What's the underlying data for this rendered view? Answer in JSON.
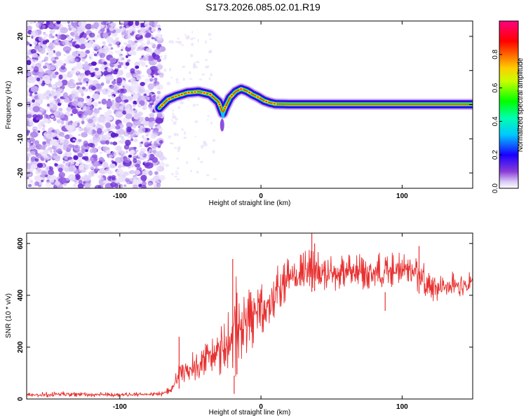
{
  "title": "S173.2026.085.02.01.R19",
  "chart_data": [
    {
      "type": "heatmap",
      "name": "spectrogram",
      "xlabel": "Height of straight line (km)",
      "ylabel": "Frequency (Hz)",
      "xlim": [
        -166,
        150
      ],
      "ylim": [
        -24.5,
        24.5
      ],
      "xticks": [
        -100,
        0,
        100
      ],
      "yticks": [
        -20,
        -10,
        0,
        10,
        20
      ],
      "noise_region_x": [
        -166,
        -72
      ],
      "ridge": {
        "x": [
          -72,
          -66,
          -60,
          -52,
          -44,
          -36,
          -30,
          -27,
          -25,
          -22,
          -18,
          -14,
          -10,
          -6,
          -2,
          2,
          6,
          10,
          20,
          50,
          100,
          150
        ],
        "freq_hz": [
          -1,
          1.5,
          2.5,
          3.5,
          3.8,
          3.0,
          0.8,
          -2.5,
          -0.5,
          2.0,
          3.8,
          4.6,
          4.0,
          3.0,
          2.2,
          1.2,
          0.6,
          0.2,
          0.1,
          0.1,
          0.1,
          0.1
        ]
      },
      "colorbar": {
        "label": "Normalized spectral amplitude",
        "ticks": [
          0.0,
          0.2,
          0.4,
          0.6,
          0.8
        ],
        "tick_labels": [
          "0.0",
          "0.2",
          "0.4",
          "0.6",
          "0.8"
        ],
        "range": [
          0,
          1
        ]
      }
    },
    {
      "type": "line",
      "name": "snr",
      "xlabel": "Height of straight line (km)",
      "ylabel": "SNR (10 * v/v)",
      "xlim": [
        -166,
        150
      ],
      "ylim": [
        0,
        640
      ],
      "xticks": [
        -100,
        0,
        100
      ],
      "yticks": [
        0,
        200,
        400,
        600
      ],
      "color": "#e83030",
      "envelope": {
        "x": [
          -166,
          -140,
          -100,
          -70,
          -62,
          -58,
          -52,
          -45,
          -38,
          -30,
          -24,
          -20,
          -18,
          -16,
          -10,
          -4,
          0,
          6,
          12,
          20,
          28,
          34,
          40,
          50,
          60,
          70,
          80,
          90,
          100,
          110,
          113,
          116,
          120,
          130,
          140,
          150
        ],
        "low": [
          5,
          8,
          8,
          10,
          20,
          40,
          60,
          70,
          80,
          80,
          110,
          120,
          60,
          130,
          170,
          200,
          240,
          290,
          330,
          370,
          400,
          410,
          420,
          410,
          420,
          420,
          420,
          410,
          420,
          420,
          400,
          380,
          370,
          380,
          380,
          390
        ],
        "high": [
          25,
          30,
          25,
          30,
          60,
          160,
          180,
          190,
          230,
          300,
          350,
          380,
          540,
          380,
          420,
          430,
          460,
          480,
          520,
          550,
          560,
          590,
          570,
          560,
          560,
          560,
          570,
          570,
          570,
          570,
          560,
          520,
          500,
          490,
          500,
          500
        ]
      },
      "spikes": [
        {
          "x": -58,
          "value": 240
        },
        {
          "x": -20,
          "value": 540
        },
        {
          "x": -19,
          "value": 20
        },
        {
          "x": -17,
          "value": 410
        },
        {
          "x": 36,
          "value": 640
        },
        {
          "x": 38,
          "value": 600
        },
        {
          "x": 88,
          "value": 340
        },
        {
          "x": 112,
          "value": 590
        }
      ]
    }
  ]
}
